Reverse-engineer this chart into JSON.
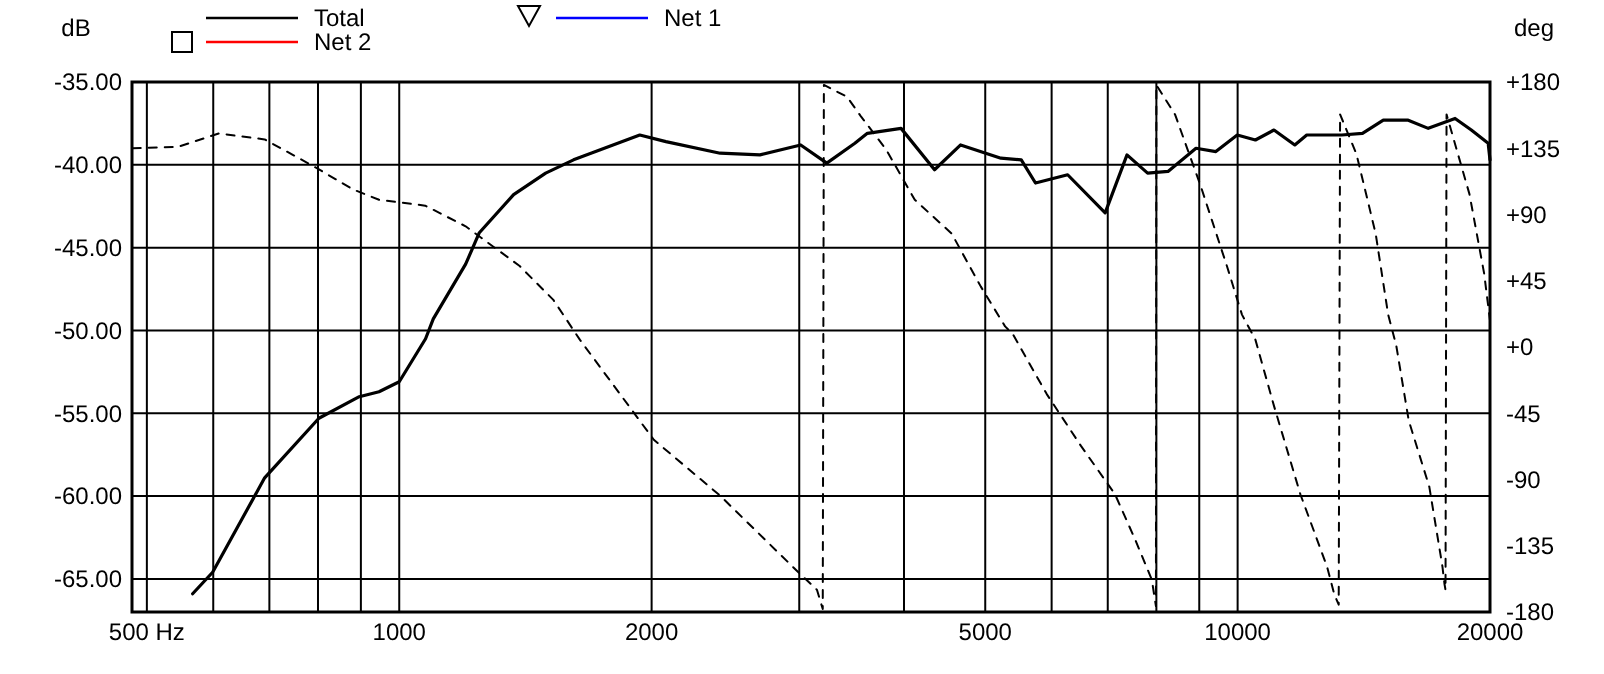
{
  "chart_data": {
    "type": "line",
    "ylabel": "dB",
    "y2label": "deg",
    "xlim": [
      480,
      20000
    ],
    "xticks": [
      {
        "value": 500,
        "label": "500 Hz"
      },
      {
        "value": 600,
        "label": null
      },
      {
        "value": 700,
        "label": null
      },
      {
        "value": 800,
        "label": null
      },
      {
        "value": 900,
        "label": null
      },
      1000,
      2000,
      {
        "value": 3000,
        "label": null
      },
      {
        "value": 4000,
        "label": null
      },
      5000,
      {
        "value": 6000,
        "label": null
      },
      {
        "value": 7000,
        "label": null
      },
      {
        "value": 8000,
        "label": null
      },
      {
        "value": 9000,
        "label": null
      },
      10000,
      20000
    ],
    "ylim": [
      -67,
      -35
    ],
    "yticks": [
      {
        "value": -35,
        "label": "-35.00"
      },
      {
        "value": -40,
        "label": "-40.00"
      },
      {
        "value": -45,
        "label": "-45.00"
      },
      {
        "value": -50,
        "label": "-50.00"
      },
      {
        "value": -55,
        "label": "-55.00"
      },
      {
        "value": -60,
        "label": "-60.00"
      },
      {
        "value": -65,
        "label": "-65.00"
      }
    ],
    "y2lim": [
      -180,
      180
    ],
    "y2ticks": [
      {
        "value": 180,
        "label": "+180"
      },
      {
        "value": 135,
        "label": "+135"
      },
      {
        "value": 90,
        "label": "+90"
      },
      {
        "value": 45,
        "label": "+45"
      },
      {
        "value": 0,
        "label": "+0"
      },
      -45,
      -90,
      -135,
      -180
    ],
    "log": "x",
    "grid": true,
    "legend": "top",
    "line_style": "solid",
    "series": [
      {
        "name": "Total",
        "color": "#000000",
        "x": [
          567,
          599,
          691,
          802,
          896,
          946,
          1000,
          1075,
          1098,
          1200,
          1246,
          1369,
          1495,
          1614,
          1936,
          2080,
          2414,
          2693,
          3012,
          3236,
          3495,
          3617,
          3968,
          4350,
          4673,
          5220,
          5520,
          5740,
          6270,
          6950,
          7380,
          7810,
          8260,
          8920,
          9420,
          9990,
          10500,
          11050,
          11700,
          12090,
          13310,
          14090,
          14920,
          15950,
          16880,
          18170,
          19000,
          19900,
          20000
        ],
        "values": [
          -65.9,
          -64.6,
          -58.9,
          -55.3,
          -54.0,
          -53.7,
          -53.1,
          -50.5,
          -49.3,
          -46.0,
          -44.1,
          -41.8,
          -40.5,
          -39.7,
          -38.2,
          -38.6,
          -39.3,
          -39.4,
          -38.8,
          -39.9,
          -38.7,
          -38.1,
          -37.8,
          -40.3,
          -38.8,
          -39.6,
          -39.7,
          -41.1,
          -40.6,
          -42.9,
          -39.4,
          -40.5,
          -40.4,
          -39.0,
          -39.2,
          -38.2,
          -38.5,
          -37.9,
          -38.8,
          -38.2,
          -38.2,
          -38.1,
          -37.3,
          -37.3,
          -37.8,
          -37.2,
          -37.9,
          -38.7,
          -39.7
        ]
      },
      {
        "name": "Net 1",
        "color": "#0000ff"
      },
      {
        "name": "Net 2",
        "color": "#ff0000"
      },
      {
        "color": "#000000",
        "axis": "y2",
        "line_style": "dashed",
        "x": [
          481,
          545,
          609,
          691,
          789,
          881,
          946,
          1074,
          1200,
          1392,
          1527,
          1642,
          2012,
          2414,
          2980,
          3150,
          3200,
          3210,
          3420,
          3550,
          3810,
          4120,
          4560,
          4940,
          5280,
          5390,
          5920,
          6500,
          7140,
          7550,
          7900,
          7990,
          8000,
          8420,
          9040,
          9710,
          10120,
          10500,
          11050,
          11880,
          12780,
          13040,
          13200,
          13250,
          13860,
          14610,
          15120,
          15460,
          16000,
          16930,
          17550,
          17650,
          17700,
          17750,
          18900,
          19680,
          20000
        ],
        "values": [
          135,
          136,
          145,
          141,
          123,
          107,
          100,
          96,
          82,
          55,
          32,
          5,
          -63,
          -101,
          -152,
          -165,
          -178,
          178,
          170,
          157,
          134,
          100,
          77,
          41,
          14,
          9,
          -32,
          -67,
          -100,
          -131,
          -158,
          -176,
          178,
          158,
          109,
          55,
          22,
          5,
          -40,
          -100,
          -149,
          -168,
          -175,
          158,
          131,
          77,
          22,
          1,
          -50,
          -95,
          -149,
          -161,
          -165,
          158,
          104,
          50,
          18
        ]
      }
    ]
  }
}
